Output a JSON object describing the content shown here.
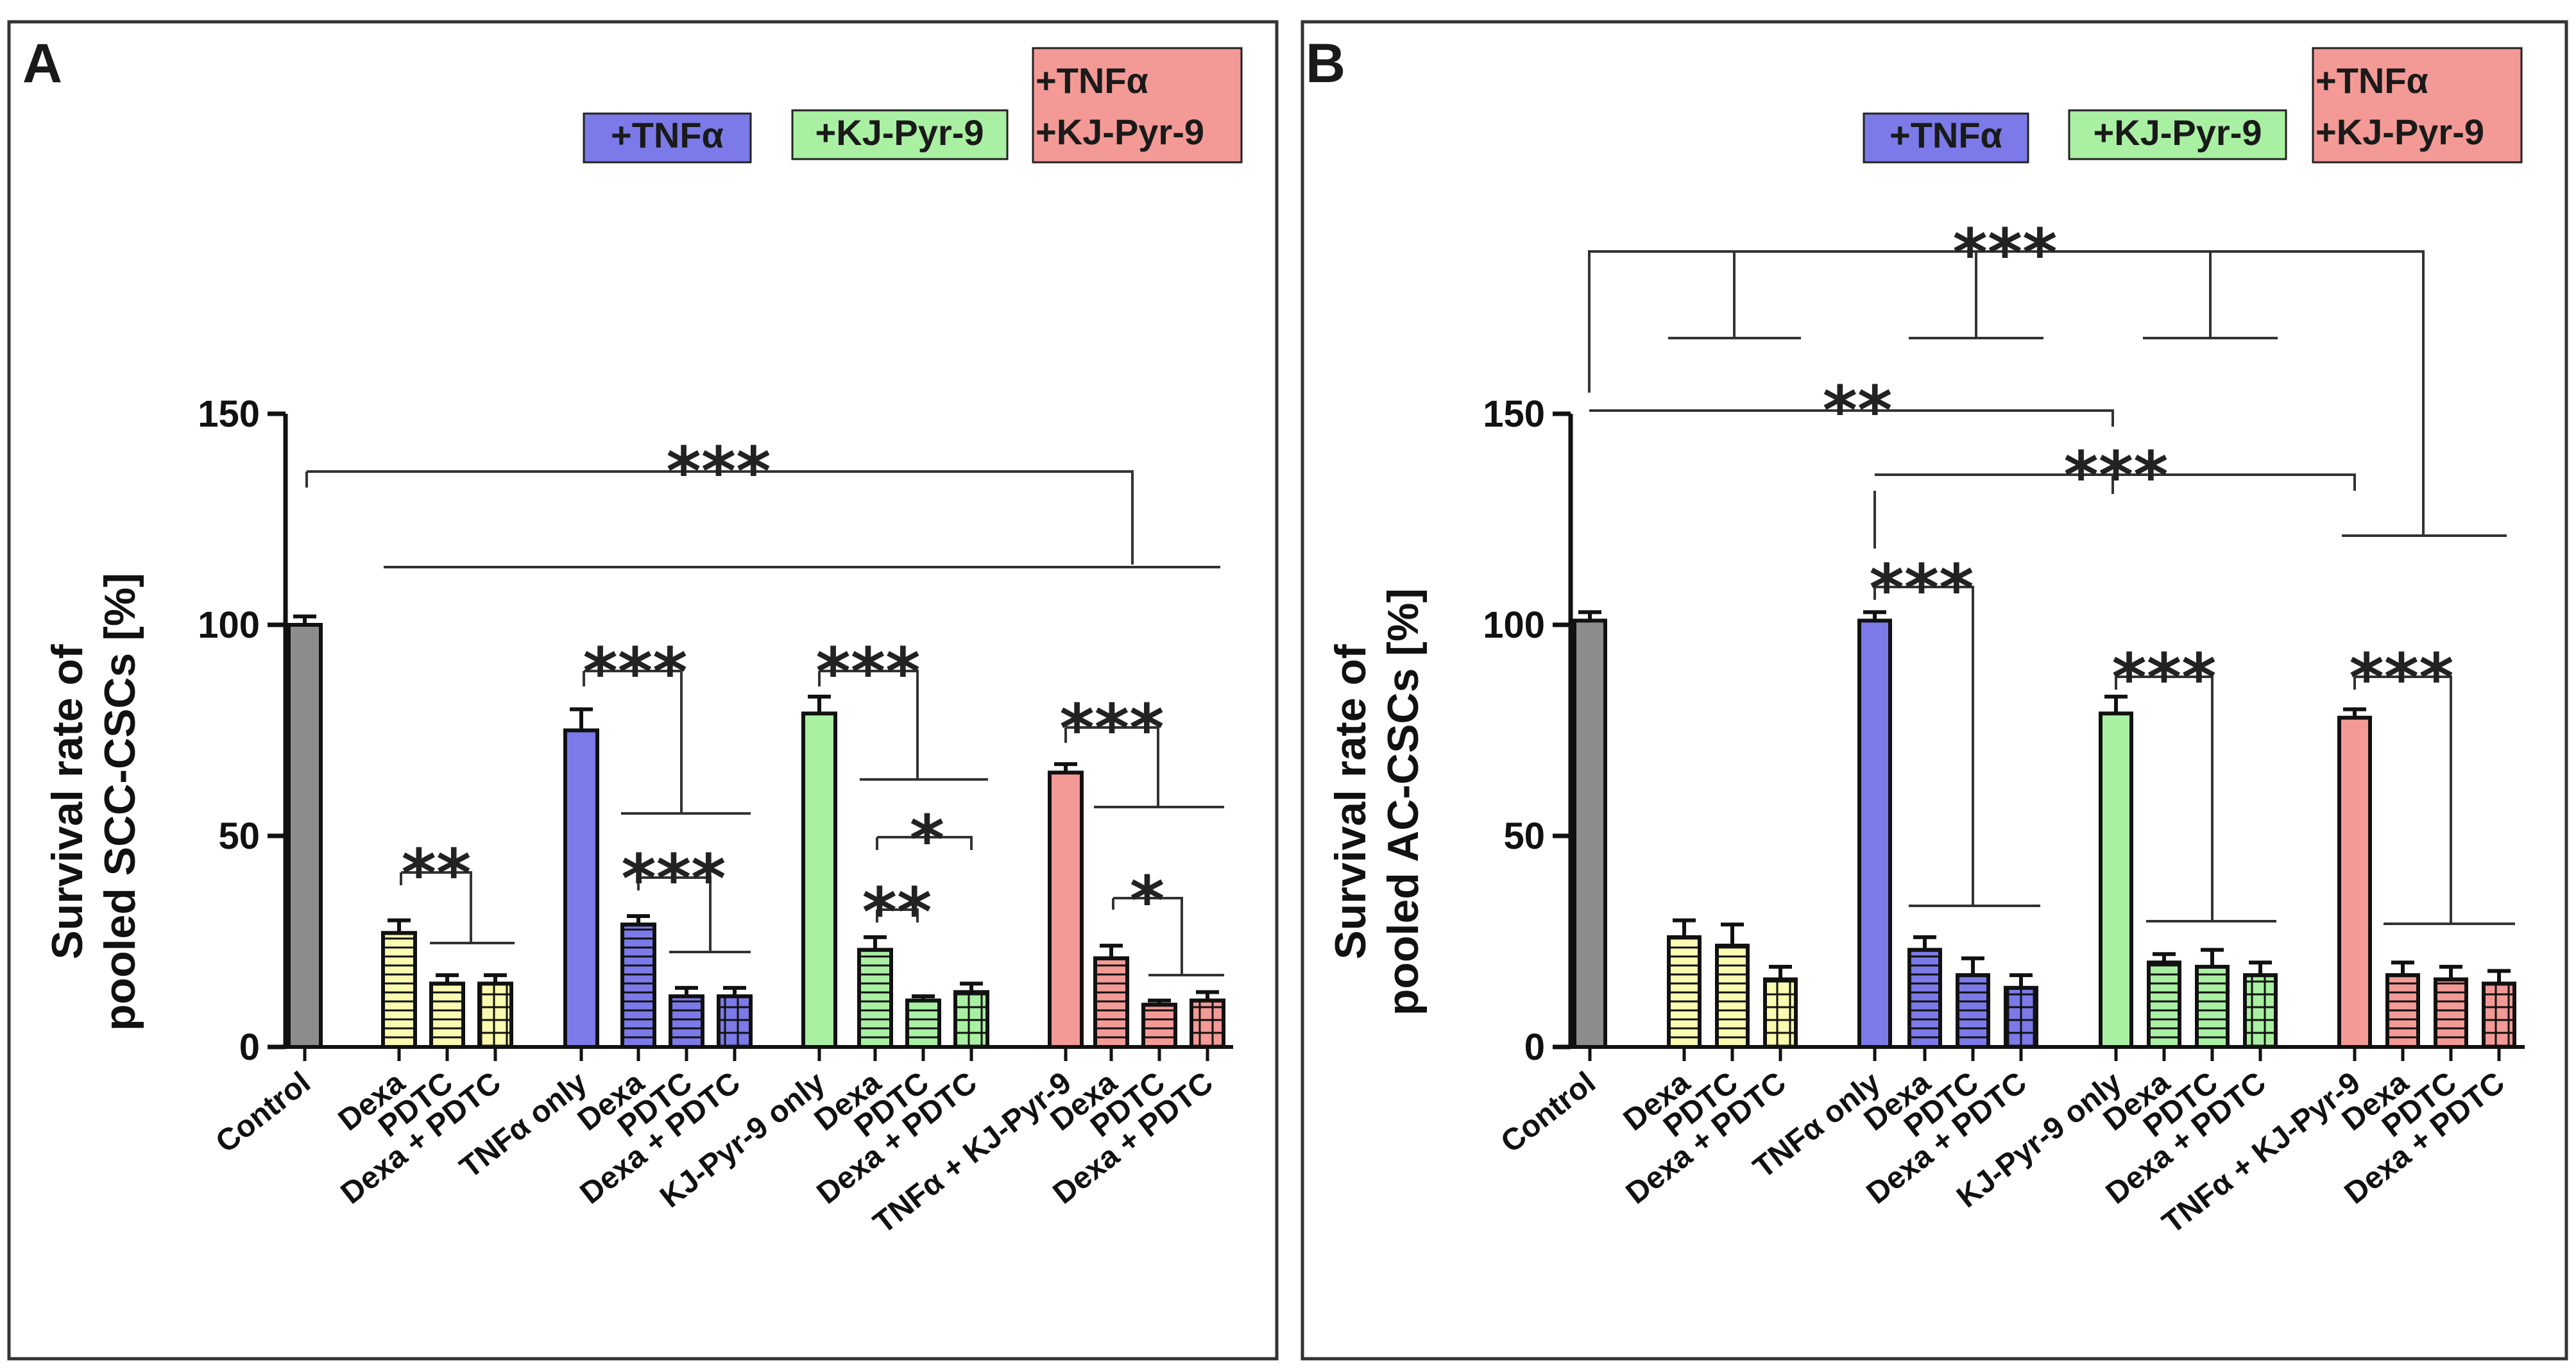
{
  "colors": {
    "control": "#8c8c8c",
    "drug": "#fafab0",
    "tnf": "#7b7ae8",
    "kj": "#a9f0a2",
    "combo": "#f39a96",
    "frame": "#333333"
  },
  "chart_data": [
    {
      "panel": "A",
      "type": "bar",
      "ylabel_line1": "Survival rate of",
      "ylabel_line2": "pooled SCC-CSCs [%]",
      "ylim": [
        0,
        150
      ],
      "yticks": [
        "0",
        "50",
        "100",
        "150"
      ],
      "legend": [
        "+TNFα",
        "+KJ-Pyr-9",
        "+TNFα",
        "+KJ-Pyr-9"
      ],
      "categories": [
        "Control",
        "Dexa",
        "PDTC",
        "Dexa + PDTC",
        "TNFα only",
        "Dexa",
        "PDTC",
        "Dexa + PDTC",
        "KJ-Pyr-9 only",
        "Dexa",
        "PDTC",
        "Dexa + PDTC",
        "TNFα + KJ-Pyr-9",
        "Dexa",
        "PDTC",
        "Dexa + PDTC"
      ],
      "values": [
        100,
        27,
        15,
        15,
        75,
        29,
        12,
        12,
        79,
        23,
        11,
        13,
        65,
        21,
        10,
        11
      ],
      "errors": [
        2,
        3,
        2,
        2,
        5,
        2,
        2,
        2,
        4,
        3,
        1,
        2,
        2,
        3,
        1,
        2
      ],
      "significance": [
        "***",
        "**",
        "***",
        "***",
        "***",
        "**",
        "*",
        "***",
        "*"
      ]
    },
    {
      "panel": "B",
      "type": "bar",
      "ylabel_line1": "Survival rate of",
      "ylabel_line2": "pooled AC-CSCs [%]",
      "ylim": [
        0,
        150
      ],
      "yticks": [
        "0",
        "50",
        "100",
        "150"
      ],
      "legend": [
        "+TNFα",
        "+KJ-Pyr-9",
        "+TNFα",
        "+KJ-Pyr-9"
      ],
      "categories": [
        "Control",
        "Dexa",
        "PDTC",
        "Dexa + PDTC",
        "TNFα only",
        "Dexa",
        "PDTC",
        "Dexa + PDTC",
        "KJ-Pyr-9 only",
        "Dexa",
        "PDTC",
        "Dexa + PDTC",
        "TNFα + KJ-Pyr-9",
        "Dexa",
        "PDTC",
        "Dexa + PDTC"
      ],
      "values": [
        101,
        26,
        24,
        16,
        101,
        23,
        17,
        14,
        79,
        20,
        19,
        17,
        78,
        17,
        16,
        15
      ],
      "errors": [
        2,
        4,
        5,
        3,
        2,
        3,
        4,
        3,
        4,
        2,
        4,
        3,
        2,
        3,
        3,
        3
      ],
      "significance": [
        "***",
        "**",
        "***",
        "***",
        "***",
        "***"
      ]
    }
  ]
}
